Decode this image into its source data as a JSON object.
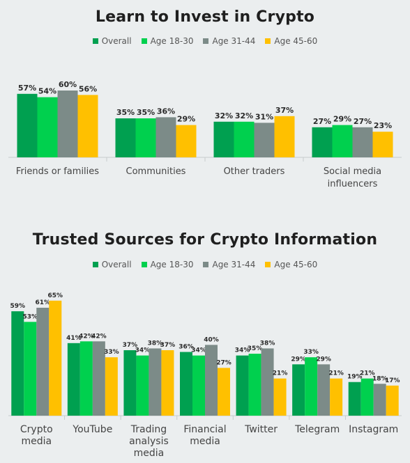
{
  "colors": {
    "Overall": "#00a050",
    "Age 18-30": "#00d04e",
    "Age 31-44": "#7c8b88",
    "Age 45-60": "#ffc000"
  },
  "chart_data": [
    {
      "type": "bar",
      "title": "Learn to Invest in Crypto",
      "categories": [
        [
          "Friends or families"
        ],
        [
          "Communities"
        ],
        [
          "Other traders"
        ],
        [
          "Social media",
          "influencers"
        ]
      ],
      "series": [
        {
          "name": "Overall",
          "values": [
            57,
            35,
            32,
            27
          ]
        },
        {
          "name": "Age 18-30",
          "values": [
            54,
            35,
            32,
            29
          ]
        },
        {
          "name": "Age 31-44",
          "values": [
            60,
            36,
            31,
            27
          ]
        },
        {
          "name": "Age 45-60",
          "values": [
            56,
            29,
            37,
            23
          ]
        }
      ],
      "value_suffix": "%",
      "ylim": [
        0,
        65
      ],
      "grid": false,
      "legend": "top-center"
    },
    {
      "type": "bar",
      "title": "Trusted Sources for Crypto Information",
      "categories": [
        [
          "Crypto",
          "media"
        ],
        [
          "YouTube"
        ],
        [
          "Trading",
          "analysis",
          "media"
        ],
        [
          "Financial",
          "media"
        ],
        [
          "Twitter"
        ],
        [
          "Telegram"
        ],
        [
          "Instagram"
        ]
      ],
      "series": [
        {
          "name": "Overall",
          "values": [
            59,
            41,
            37,
            36,
            34,
            29,
            19
          ]
        },
        {
          "name": "Age 18-30",
          "values": [
            53,
            42,
            34,
            34,
            35,
            33,
            21
          ]
        },
        {
          "name": "Age 31-44",
          "values": [
            61,
            42,
            38,
            40,
            38,
            29,
            18
          ]
        },
        {
          "name": "Age 45-60",
          "values": [
            65,
            33,
            37,
            27,
            21,
            21,
            17
          ]
        }
      ],
      "value_suffix": "%",
      "ylim": [
        0,
        65
      ],
      "grid": false,
      "legend": "top-center"
    }
  ]
}
